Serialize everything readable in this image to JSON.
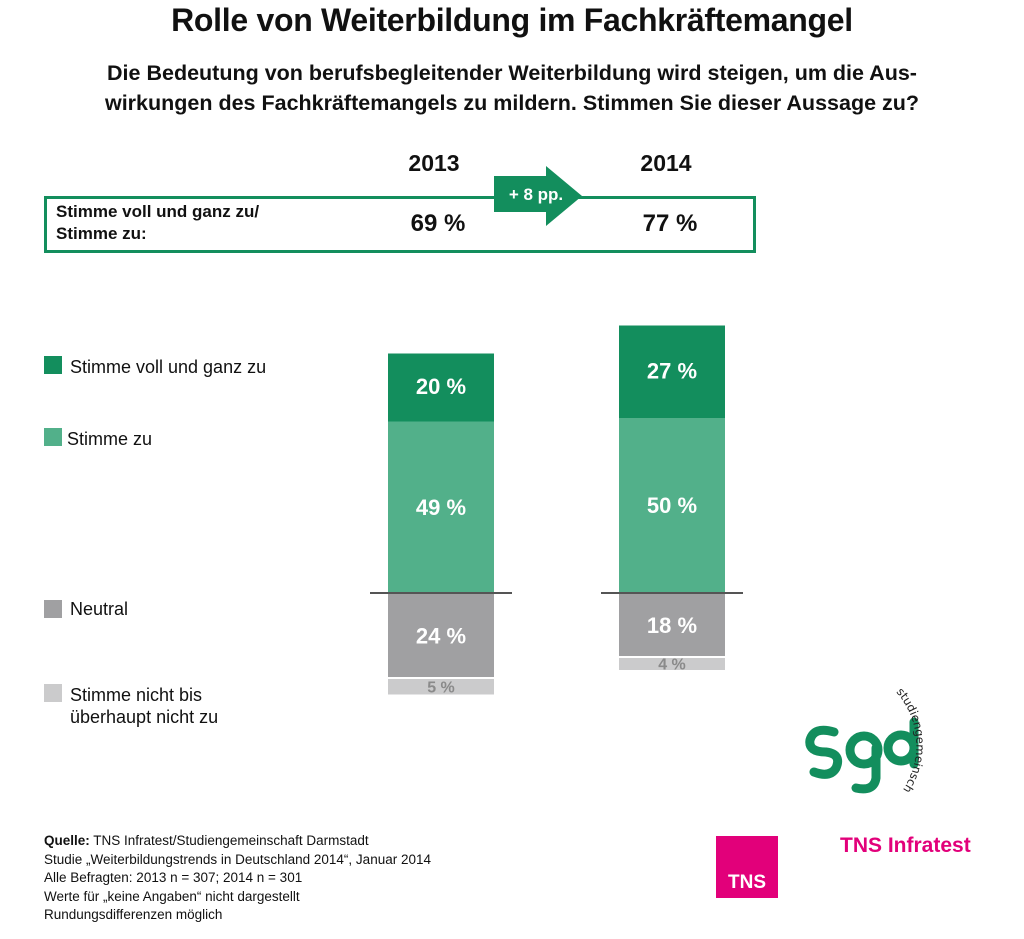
{
  "title": "Rolle von Weiterbildung im Fachkräftemangel",
  "subtitle": "Die Bedeutung von berufsbegleitender Weiterbildung wird steigen, um die Aus-\nwirkungen des Fachkräftemangels zu mildern. Stimmen Sie dieser Aussage zu?",
  "summary": {
    "label": "Stimme voll und ganz zu/\nStimme zu:",
    "value_2013": "69 %",
    "value_2014": "77 %",
    "change_label": "+ 8 pp."
  },
  "colors": {
    "dark_green": "#138e5d",
    "light_green": "#52b08a",
    "grey": "#a0a0a2",
    "light_grey": "#cbcbcc",
    "tns_magenta": "#e2007a"
  },
  "chart_data": {
    "type": "bar",
    "stacked": true,
    "categories": [
      "2013",
      "2014"
    ],
    "series": [
      {
        "name": "Stimme voll und ganz zu",
        "values": [
          20,
          27
        ],
        "labels": [
          "20 %",
          "27 %"
        ],
        "color": "#138e5d"
      },
      {
        "name": "Stimme zu",
        "values": [
          49,
          50
        ],
        "labels": [
          "49 %",
          "50 %"
        ],
        "color": "#52b08a"
      },
      {
        "name": "Neutral",
        "values": [
          24,
          18
        ],
        "labels": [
          "24 %",
          "18 %"
        ],
        "color": "#a0a0a2"
      },
      {
        "name": "Stimme nicht bis überhaupt nicht zu",
        "values": [
          5,
          4
        ],
        "labels": [
          "5 %",
          "4 %"
        ],
        "color": "#cbcbcc"
      }
    ],
    "baseline_between": [
      "Stimme zu",
      "Neutral"
    ],
    "legend": [
      "Stimme voll und ganz zu",
      "Stimme zu",
      "Neutral",
      "Stimme nicht bis\nüberhaupt nicht zu"
    ],
    "legend_position": "left"
  },
  "source": {
    "label": "Quelle:",
    "text": " TNS Infratest/Studiengemeinschaft Darmstadt",
    "lines": [
      "Studie „Weiterbildungstrends in Deutschland 2014“, Januar 2014",
      "Alle Befragten: 2013 n = 307; 2014 n = 301",
      "Werte für „keine Angaben“ nicht dargestellt",
      "Rundungsdifferenzen möglich"
    ]
  },
  "logos": {
    "sgd_icon": "sgd-logo-icon",
    "sgd_arc_text": "studiengemeinschaft · darmstadt",
    "tns_box_text": "TNS",
    "tns_name": "TNS Infratest"
  }
}
